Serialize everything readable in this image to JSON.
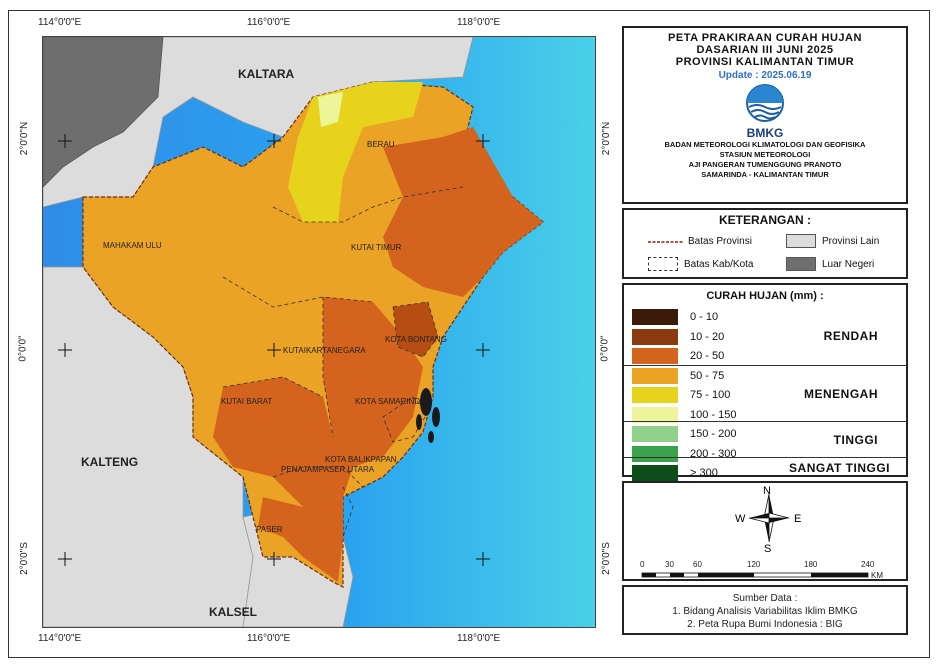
{
  "map": {
    "coords": {
      "lon_top": [
        "114°0'0\"E",
        "116°0'0\"E",
        "118°0'0\"E"
      ],
      "lon_bottom": [
        "114°0'0\"E",
        "116°0'0\"E",
        "118°0'0\"E"
      ],
      "lat_left": [
        "2°0'0\"N",
        "0°0'0\"",
        "2°0'0\"S"
      ],
      "lat_right": [
        "2°0'0\"N",
        "0°0'0\"",
        "2°0'0\"S"
      ]
    },
    "labels": {
      "kaltara": "KALTARA",
      "kalteng": "KALTENG",
      "kalsel": "KALSEL",
      "berau": "BERAU",
      "mahakam_ulu": "MAHAKAM ULU",
      "kutai_timur": "KUTAI TIMUR",
      "kutai_kartanegara": "KUTAIKARTANEGARA",
      "kota_bontang": "KOTA BONTANG",
      "kutai_barat": "KUTAI BARAT",
      "kota_samarinda": "KOTA SAMARINDA",
      "kota_balikpapan": "KOTA BALIKPAPAN",
      "penajam": "PENAJAMPASER UTARA",
      "paser": "PASER"
    }
  },
  "header": {
    "line1": "PETA PRAKIRAAN CURAH HUJAN",
    "line2": "DASARIAN III JUNI 2025",
    "line3": "PROVINSI KALIMANTAN TIMUR",
    "update": "Update : 2025.06.19",
    "logo_text": "BMKG",
    "org1": "BADAN METEOROLOGI KLIMATOLOGI DAN GEOFISIKA",
    "org2": "STASIUN METEOROLOGI",
    "org3": "AJI PANGERAN TUMENGGUNG PRANOTO",
    "org4": "SAMARINDA - KALIMANTAN TIMUR"
  },
  "keterangan": {
    "title": "KETERANGAN :",
    "batas_provinsi": "Batas Provinsi",
    "batas_kab": "Batas Kab/Kota",
    "provinsi_lain": "Provinsi Lain",
    "luar_negeri": "Luar Negeri"
  },
  "rainfall": {
    "title": "CURAH HUJAN (mm) :",
    "classes": [
      {
        "range": "0 - 10",
        "color": "#3b1a08"
      },
      {
        "range": "10 - 20",
        "color": "#8a3a0c"
      },
      {
        "range": "20 - 50",
        "color": "#d3631d"
      },
      {
        "range": "50 - 75",
        "color": "#eba326"
      },
      {
        "range": "75 - 100",
        "color": "#e7d21c"
      },
      {
        "range": "100 - 150",
        "color": "#ecf59a"
      },
      {
        "range": "150 - 200",
        "color": "#8fd18a"
      },
      {
        "range": "200 - 300",
        "color": "#3aa24a"
      },
      {
        "range": "> 300",
        "color": "#0c4d1a"
      }
    ],
    "categories": {
      "rendah": "RENDAH",
      "menengah": "MENENGAH",
      "tinggi": "TINGGI",
      "sangat_tinggi": "SANGAT TINGGI"
    }
  },
  "compass": {
    "n": "N",
    "s": "S",
    "e": "E",
    "w": "W"
  },
  "scale": {
    "ticks": [
      "0",
      "30",
      "60",
      "120",
      "180",
      "240"
    ],
    "unit": "KM"
  },
  "source": {
    "title": "Sumber Data :",
    "line1": "1. Bidang Analisis Variabilitas Iklim BMKG",
    "line2": "2. Peta Rupa Bumi Indonesia : BIG"
  },
  "colors": {
    "sea": "#2aa6f0",
    "other_province": "#dcdcdc",
    "foreign": "#6e6e6e"
  }
}
